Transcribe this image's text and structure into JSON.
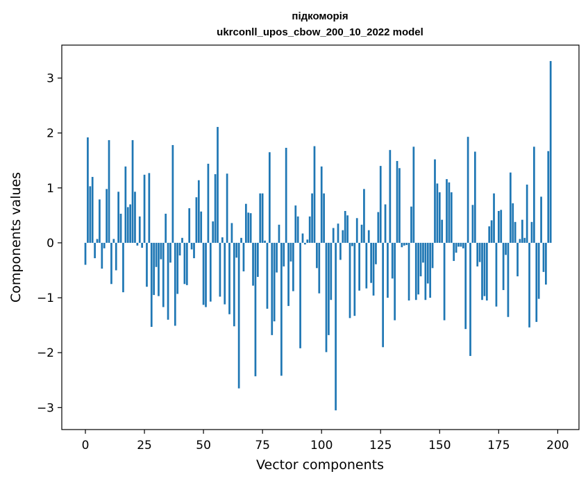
{
  "chart_data": {
    "type": "bar",
    "title": "підкоморія",
    "subtitle": "ukrconll_upos_cbow_200_10_2022 model",
    "xlabel": "Vector components",
    "ylabel": "Components values",
    "xlim": [
      -10,
      209
    ],
    "ylim": [
      -3.4,
      3.6
    ],
    "xticks": [
      0,
      25,
      50,
      75,
      100,
      125,
      150,
      175,
      200
    ],
    "yticks": [
      -3,
      -2,
      -1,
      0,
      1,
      2,
      3
    ],
    "ytick_labels": [
      "−3",
      "−2",
      "−1",
      "0",
      "1",
      "2",
      "3"
    ],
    "bar_color": "#1f77b4",
    "bar_width": 0.8,
    "grid": false,
    "values": [
      -0.4,
      1.92,
      1.03,
      1.2,
      -0.28,
      0.07,
      0.79,
      -0.47,
      -0.1,
      0.98,
      1.87,
      -0.75,
      0.07,
      -0.5,
      0.93,
      0.53,
      -0.9,
      1.39,
      0.65,
      0.7,
      1.87,
      0.93,
      -0.05,
      0.48,
      -0.09,
      1.24,
      -0.8,
      1.27,
      -1.53,
      -0.95,
      -0.44,
      -0.97,
      -0.3,
      -1.17,
      0.53,
      -1.4,
      -0.36,
      1.78,
      -1.51,
      -0.93,
      -0.23,
      0.09,
      -0.75,
      -0.77,
      0.63,
      -0.12,
      -0.28,
      0.83,
      1.14,
      0.57,
      -1.13,
      -1.17,
      1.44,
      -1.07,
      0.39,
      1.25,
      2.11,
      -0.98,
      0.1,
      -1.12,
      1.26,
      -1.3,
      0.36,
      -1.52,
      -0.27,
      -2.65,
      0.09,
      -0.52,
      0.71,
      0.55,
      0.54,
      -0.78,
      -2.43,
      -0.62,
      0.9,
      0.9,
      0.04,
      -1.2,
      1.65,
      -1.68,
      -1.43,
      -0.54,
      0.33,
      -2.42,
      -0.43,
      1.73,
      -1.15,
      -0.34,
      -0.88,
      0.68,
      0.48,
      -1.92,
      0.17,
      -0.03,
      0.06,
      0.48,
      0.9,
      1.76,
      -0.46,
      -0.92,
      1.39,
      0.9,
      -1.99,
      -1.68,
      -1.04,
      0.27,
      -3.05,
      0.35,
      -0.31,
      0.23,
      0.58,
      0.5,
      -1.37,
      -0.06,
      -1.33,
      0.45,
      -0.87,
      0.33,
      0.98,
      -0.83,
      0.23,
      -0.73,
      -0.96,
      -0.39,
      0.56,
      1.4,
      -1.9,
      0.7,
      -1.0,
      1.69,
      -0.65,
      -1.41,
      1.49,
      1.36,
      -0.08,
      -0.05,
      -0.04,
      -1.05,
      0.66,
      1.75,
      -1.04,
      -0.94,
      -0.61,
      -0.36,
      -1.04,
      -0.74,
      -1.0,
      -0.46,
      1.52,
      1.08,
      0.92,
      0.42,
      -1.41,
      1.16,
      1.1,
      0.92,
      -0.33,
      -0.18,
      -0.07,
      -0.07,
      -0.1,
      -1.57,
      1.93,
      -2.06,
      0.69,
      1.66,
      -0.43,
      -0.35,
      -1.04,
      -0.97,
      -1.05,
      0.3,
      0.41,
      0.9,
      -1.16,
      0.58,
      0.6,
      -0.86,
      -0.22,
      -1.35,
      1.28,
      0.72,
      0.38,
      -0.61,
      0.07,
      0.42,
      0.09,
      1.06,
      -1.54,
      0.38,
      1.75,
      -1.44,
      -1.02,
      0.84,
      -0.53,
      -0.76,
      1.67,
      3.31
    ]
  }
}
